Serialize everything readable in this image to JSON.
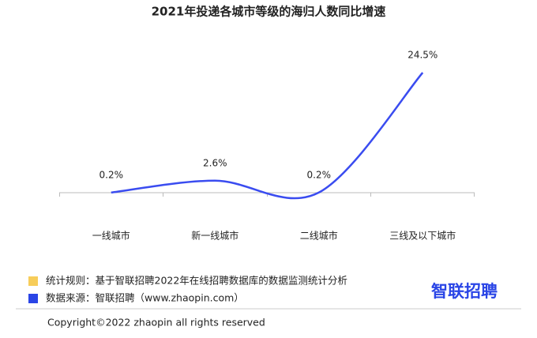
{
  "chart_data": {
    "type": "line",
    "title": "2021年投递各城市等级的海归人数同比增速",
    "categories": [
      "一线城市",
      "新一线城市",
      "二线城市",
      "三线及以下城市"
    ],
    "values": [
      0.2,
      2.6,
      0.2,
      24.5
    ],
    "value_labels": [
      "0.2%",
      "2.6%",
      "0.2%",
      "24.5%"
    ],
    "color": "#3a4cf0",
    "notes": [
      {
        "text": "统计规则：基于智联招聘2022年在线招聘数据库的数据监测统计分析",
        "color": "#f7cd5a"
      },
      {
        "text": "数据来源：智联招聘（www.zhaopin.com）",
        "color": "#2a45e6"
      }
    ],
    "logo": "智联招聘",
    "copyright": "Copyright©2022 zhaopin all rights reserved"
  }
}
